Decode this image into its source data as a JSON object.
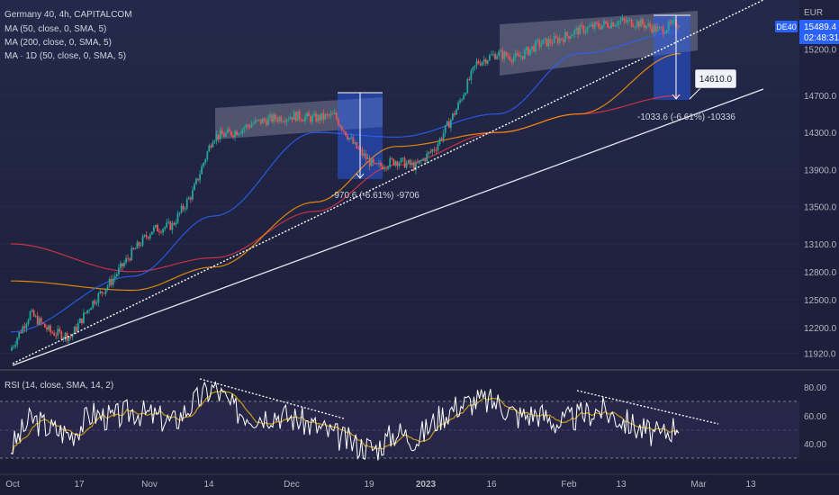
{
  "legend": {
    "symbol_line": "Germany 40, 4h, CAPITALCOM",
    "ma50": "MA (50, close, 0, SMA, 5)",
    "ma200": "MA (200, close, 0, SMA, 5)",
    "ma1d": "MA · 1D (50, close, 0, SMA, 5)"
  },
  "price_axis": {
    "currency": "EUR",
    "ticks": [
      "15200.0",
      "14700.0",
      "14300.0",
      "13900.0",
      "13500.0",
      "13100.0",
      "12800.0",
      "12500.0",
      "12200.0",
      "11920.0"
    ],
    "tag_symbol": "DE40",
    "last_price": "15489.4",
    "countdown": "02:48:31"
  },
  "rsi": {
    "label": "RSI (14, close, SMA, 14, 2)",
    "ticks": [
      "80.00",
      "60.00",
      "40.00"
    ]
  },
  "time_axis": {
    "labels": [
      "Oct",
      "17",
      "Nov",
      "14",
      "Dec",
      "19",
      "2023",
      "16",
      "Feb",
      "13",
      "Mar",
      "13"
    ]
  },
  "annotations": {
    "target_price": "14610.0",
    "drop1": "-970.6 (-6.61%) -9706",
    "drop2": "-1033.6 (-6.61%) -10336"
  },
  "colors": {
    "background": "#1c1f3a",
    "candle_up": "#26a69a",
    "candle_down": "#ef5350",
    "ma50": "#2962ff",
    "ma200": "#ff9800",
    "ma1d": "#f23645",
    "rsi_line": "#ffffff",
    "rsi_ma": "#ffc107",
    "measure_box": "#2962ff"
  },
  "chart_data": {
    "type": "candlestick",
    "symbol": "Germany 40",
    "timeframe": "4h",
    "source": "CAPITALCOM",
    "currency": "EUR",
    "ylim": [
      11800,
      15650
    ],
    "price_path": [
      [
        "Sep 29",
        11950
      ],
      [
        "Oct 3",
        12350
      ],
      [
        "Oct 7",
        12150
      ],
      [
        "Oct 12",
        12100
      ],
      [
        "Oct 17",
        12450
      ],
      [
        "Oct 21",
        12700
      ],
      [
        "Oct 26",
        13000
      ],
      [
        "Oct 31",
        13250
      ],
      [
        "Nov 4",
        13300
      ],
      [
        "Nov 9",
        13650
      ],
      [
        "Nov 14",
        14250
      ],
      [
        "Nov 18",
        14300
      ],
      [
        "Nov 23",
        14400
      ],
      [
        "Nov 28",
        14450
      ],
      [
        "Dec 2",
        14480
      ],
      [
        "Dec 7",
        14450
      ],
      [
        "Dec 12",
        14480
      ],
      [
        "Dec 15",
        14150
      ],
      [
        "Dec 20",
        13920
      ],
      [
        "Dec 23",
        14000
      ],
      [
        "Dec 29",
        13930
      ],
      [
        "Jan 3",
        14150
      ],
      [
        "Jan 6",
        14550
      ],
      [
        "Jan 11",
        15050
      ],
      [
        "Jan 16",
        15150
      ],
      [
        "Jan 20",
        15100
      ],
      [
        "Jan 25",
        15250
      ],
      [
        "Jan 30",
        15300
      ],
      [
        "Feb 3",
        15400
      ],
      [
        "Feb 8",
        15450
      ],
      [
        "Feb 13",
        15500
      ],
      [
        "Feb 17",
        15480
      ],
      [
        "Feb 21",
        15400
      ],
      [
        "Feb 24",
        15489.4
      ]
    ],
    "ma50": [
      [
        "Sep 29",
        12150
      ],
      [
        "Oct 26",
        12750
      ],
      [
        "Nov 14",
        13400
      ],
      [
        "Dec 7",
        14300
      ],
      [
        "Dec 23",
        14250
      ],
      [
        "Jan 16",
        14500
      ],
      [
        "Feb 3",
        15150
      ],
      [
        "Feb 24",
        15380
      ]
    ],
    "ma200": [
      [
        "Sep 29",
        12700
      ],
      [
        "Oct 26",
        12600
      ],
      [
        "Nov 14",
        12850
      ],
      [
        "Dec 7",
        13550
      ],
      [
        "Dec 23",
        14150
      ],
      [
        "Jan 16",
        14300
      ],
      [
        "Feb 3",
        14500
      ],
      [
        "Feb 24",
        15150
      ]
    ],
    "ma_1d": [
      [
        "Sep 29",
        13100
      ],
      [
        "Oct 26",
        12800
      ],
      [
        "Nov 14",
        12950
      ],
      [
        "Dec 7",
        13450
      ],
      [
        "Dec 23",
        13950
      ],
      [
        "Jan 16",
        14300
      ],
      [
        "Feb 3",
        14500
      ],
      [
        "Feb 24",
        14700
      ]
    ],
    "last_price": 15489.4,
    "target_price": 14610,
    "measurements": [
      {
        "label": "-970.6 (-6.61%) -9706",
        "from": [
          "Dec 15",
          14680
        ],
        "to": [
          "Dec 15",
          13710
        ]
      },
      {
        "label": "-1033.6 (-6.61%) -10336",
        "from": [
          "Feb 21",
          15650
        ],
        "to": [
          "Feb 21",
          14616
        ]
      }
    ],
    "rsi": {
      "params": "14, close, SMA, 14, 2",
      "ylim": [
        20,
        92
      ],
      "levels": [
        70,
        50,
        30
      ],
      "values": [
        [
          "Sep 29",
          35
        ],
        [
          "Oct 3",
          58
        ],
        [
          "Oct 7",
          50
        ],
        [
          "Oct 12",
          46
        ],
        [
          "Oct 17",
          62
        ],
        [
          "Oct 21",
          58
        ],
        [
          "Oct 26",
          64
        ],
        [
          "Oct 31",
          60
        ],
        [
          "Nov 4",
          55
        ],
        [
          "Nov 9",
          70
        ],
        [
          "Nov 14",
          82
        ],
        [
          "Nov 18",
          65
        ],
        [
          "Nov 23",
          60
        ],
        [
          "Nov 28",
          62
        ],
        [
          "Dec 2",
          58
        ],
        [
          "Dec 7",
          52
        ],
        [
          "Dec 12",
          45
        ],
        [
          "Dec 15",
          38
        ],
        [
          "Dec 20",
          35
        ],
        [
          "Dec 23",
          48
        ],
        [
          "Dec 29",
          42
        ],
        [
          "Jan 3",
          58
        ],
        [
          "Jan 6",
          68
        ],
        [
          "Jan 11",
          72
        ],
        [
          "Jan 16",
          70
        ],
        [
          "Jan 20",
          60
        ],
        [
          "Jan 25",
          62
        ],
        [
          "Jan 30",
          54
        ],
        [
          "Feb 3",
          60
        ],
        [
          "Feb 8",
          65
        ],
        [
          "Feb 13",
          58
        ],
        [
          "Feb 17",
          50
        ],
        [
          "Feb 21",
          44
        ],
        [
          "Feb 24",
          56
        ]
      ]
    }
  }
}
